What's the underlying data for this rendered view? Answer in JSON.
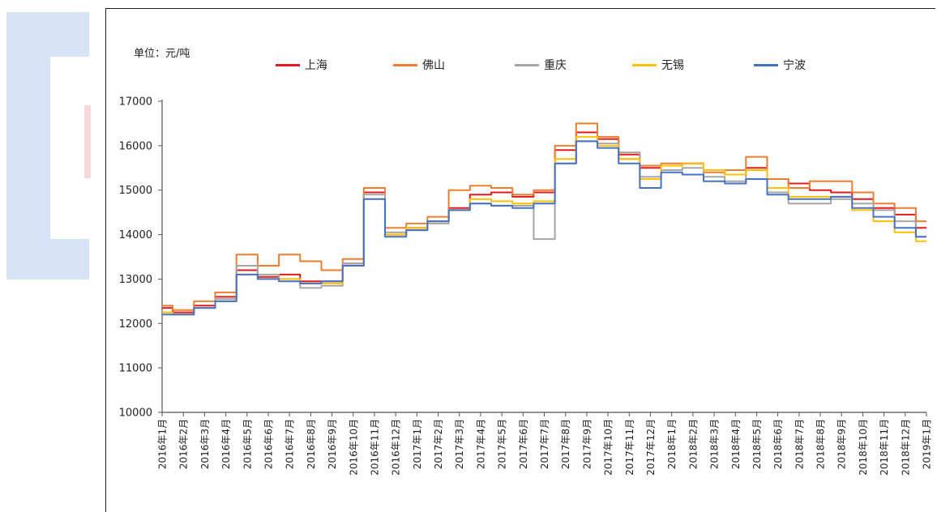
{
  "chart_data": {
    "type": "line",
    "unit_label": "单位：元/吨",
    "ylim": [
      10000,
      17000
    ],
    "yticks": [
      10000,
      11000,
      12000,
      13000,
      14000,
      15000,
      16000,
      17000
    ],
    "x_labels": [
      "2016年1月",
      "2016年2月",
      "2016年3月",
      "2016年4月",
      "2016年5月",
      "2016年6月",
      "2016年7月",
      "2016年8月",
      "2016年9月",
      "2016年10月",
      "2016年11月",
      "2016年12月",
      "2017年1月",
      "2017年2月",
      "2017年3月",
      "2017年4月",
      "2017年5月",
      "2017年6月",
      "2017年7月",
      "2017年8月",
      "2017年9月",
      "2017年10月",
      "2017年11月",
      "2017年12月",
      "2018年1月",
      "2018年2月",
      "2018年3月",
      "2018年4月",
      "2018年5月",
      "2018年6月",
      "2018年7月",
      "2018年8月",
      "2018年9月",
      "2018年10月",
      "2018年11月",
      "2018年12月",
      "2019年1月"
    ],
    "series": [
      {
        "name": "上海",
        "color": "#e31a1c",
        "values": [
          12350,
          12250,
          12400,
          12600,
          13200,
          13050,
          13100,
          12950,
          12950,
          13350,
          14950,
          14000,
          14150,
          14300,
          14600,
          14900,
          14950,
          14850,
          14950,
          15900,
          16300,
          16150,
          15800,
          15500,
          15550,
          15600,
          15450,
          15350,
          15500,
          15250,
          15150,
          15000,
          14950,
          14800,
          14600,
          14450,
          14150
        ]
      },
      {
        "name": "佛山",
        "color": "#ed7d31",
        "values": [
          12400,
          12300,
          12500,
          12700,
          13550,
          13300,
          13550,
          13400,
          13200,
          13450,
          15050,
          14150,
          14250,
          14400,
          15000,
          15100,
          15050,
          14900,
          15000,
          16000,
          16500,
          16200,
          15700,
          15550,
          15600,
          15600,
          15400,
          15450,
          15750,
          15250,
          15050,
          15200,
          15200,
          14950,
          14700,
          14600,
          14300
        ]
      },
      {
        "name": "重庆",
        "color": "#a5a5a5",
        "values": [
          12250,
          12200,
          12350,
          12550,
          13300,
          13100,
          13000,
          12800,
          12850,
          13350,
          14900,
          14050,
          14100,
          14250,
          14550,
          14700,
          14650,
          14650,
          13900,
          15600,
          16100,
          16050,
          15850,
          15300,
          15450,
          15500,
          15300,
          15200,
          15450,
          14950,
          14700,
          14700,
          14800,
          14700,
          14550,
          14300,
          13950
        ]
      },
      {
        "name": "无锡",
        "color": "#ffc000",
        "values": [
          12250,
          12200,
          12350,
          12500,
          13100,
          13000,
          13000,
          12900,
          12900,
          13300,
          14800,
          14000,
          14150,
          14300,
          14550,
          14800,
          14750,
          14700,
          14750,
          15700,
          16200,
          16000,
          15700,
          15250,
          15550,
          15600,
          15450,
          15350,
          15450,
          15050,
          14850,
          14850,
          14850,
          14550,
          14300,
          14050,
          13850
        ]
      },
      {
        "name": "宁波",
        "color": "#4472c4",
        "values": [
          12200,
          12200,
          12350,
          12500,
          13100,
          13000,
          12950,
          12900,
          12950,
          13300,
          14800,
          13950,
          14100,
          14300,
          14550,
          14700,
          14650,
          14600,
          14700,
          15600,
          16100,
          15950,
          15600,
          15050,
          15400,
          15350,
          15200,
          15150,
          15250,
          14900,
          14800,
          14800,
          14850,
          14600,
          14400,
          14150,
          13950
        ]
      }
    ]
  }
}
